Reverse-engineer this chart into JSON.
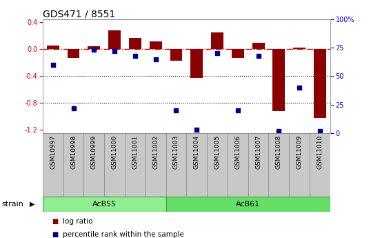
{
  "title": "GDS471 / 8551",
  "samples": [
    "GSM10997",
    "GSM10998",
    "GSM10999",
    "GSM11000",
    "GSM11001",
    "GSM11002",
    "GSM11003",
    "GSM11004",
    "GSM11005",
    "GSM11006",
    "GSM11007",
    "GSM11008",
    "GSM11009",
    "GSM11010"
  ],
  "log_ratio": [
    0.06,
    -0.13,
    0.05,
    0.28,
    0.17,
    0.12,
    -0.17,
    -0.43,
    0.25,
    -0.13,
    0.1,
    -0.92,
    0.02,
    -1.02
  ],
  "percentile": [
    60,
    22,
    73,
    72,
    68,
    65,
    20,
    3,
    70,
    20,
    68,
    2,
    40,
    2
  ],
  "groups": [
    {
      "label": "AcB55",
      "start": 0,
      "end": 5,
      "color": "#90EE90"
    },
    {
      "label": "AcB61",
      "start": 6,
      "end": 13,
      "color": "#66DD66"
    }
  ],
  "bar_color": "#8B0000",
  "dot_color": "#00008B",
  "ylim": [
    -1.25,
    0.45
  ],
  "yticks_left": [
    -1.2,
    -0.8,
    -0.4,
    0.0,
    0.4
  ],
  "yticks_right": [
    0,
    25,
    50,
    75,
    100
  ],
  "dotted_lines": [
    -0.4,
    -0.8
  ],
  "bar_width": 0.6,
  "legend_items": [
    "log ratio",
    "percentile rank within the sample"
  ],
  "strain_label": "strain",
  "right_axis_color": "#0000CC",
  "left_axis_color": "#CC0000",
  "title_fontsize": 10,
  "tick_fontsize": 7,
  "label_fontsize": 8,
  "sample_box_color": "#C8C8C8",
  "sample_box_edge": "#888888"
}
